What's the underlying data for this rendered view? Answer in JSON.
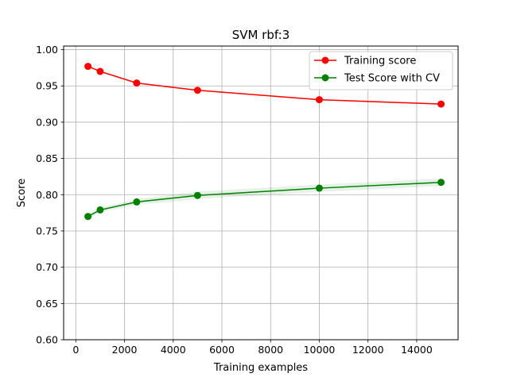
{
  "chart_data": {
    "type": "line",
    "title": "SVM rbf:3",
    "xlabel": "Training examples",
    "ylabel": "Score",
    "xlim": [
      -500,
      15700
    ],
    "ylim": [
      0.6,
      1.005
    ],
    "xticks": [
      0,
      2000,
      4000,
      6000,
      8000,
      10000,
      12000,
      14000
    ],
    "xtick_labels": [
      "0",
      "2000",
      "4000",
      "6000",
      "8000",
      "10000",
      "12000",
      "14000"
    ],
    "yticks": [
      0.6,
      0.65,
      0.7,
      0.75,
      0.8,
      0.85,
      0.9,
      0.95,
      1.0
    ],
    "ytick_labels": [
      "0.60",
      "0.65",
      "0.70",
      "0.75",
      "0.80",
      "0.85",
      "0.90",
      "0.95",
      "1.00"
    ],
    "grid": true,
    "legend_position": "top-right",
    "x": [
      500,
      1000,
      2500,
      5000,
      10000,
      15000
    ],
    "series": [
      {
        "name": "Training score",
        "color": "#ff0000",
        "values": [
          0.977,
          0.97,
          0.954,
          0.944,
          0.931,
          0.925
        ],
        "band_lower": [
          0.976,
          0.969,
          0.953,
          0.943,
          0.93,
          0.924
        ],
        "band_upper": [
          0.978,
          0.971,
          0.955,
          0.945,
          0.932,
          0.926
        ]
      },
      {
        "name": "Test Score with CV",
        "color": "#008000",
        "values": [
          0.77,
          0.779,
          0.79,
          0.799,
          0.809,
          0.817
        ],
        "band_lower": [
          0.767,
          0.776,
          0.786,
          0.794,
          0.804,
          0.812
        ],
        "band_upper": [
          0.773,
          0.782,
          0.794,
          0.804,
          0.814,
          0.822
        ]
      }
    ]
  }
}
